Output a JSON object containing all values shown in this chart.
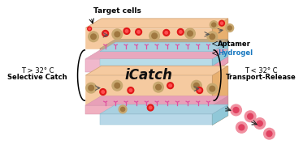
{
  "bg_color": "#ffffff",
  "icatch_text": "iCatch",
  "left_text_line1": "T > 32° C",
  "left_text_line2": "Selective Catch",
  "right_text_line1": "T < 32° C",
  "right_text_line2": "Transport-Release",
  "top_label_cells": "Target cells",
  "top_label_aptamer": "Aptamer",
  "top_label_hydrogel": "Hydrogel",
  "top_box": {
    "tan_color": "#f5caa0",
    "tan_dark": "#e8b070",
    "pink_color": "#f0b8cc",
    "pink_dark": "#e8a0b8",
    "blue_color": "#b8dce8",
    "aptamer_layer": "#c8a888"
  },
  "bottom_box": {
    "tan_color": "#f5caa0",
    "tan_dark": "#e8b070",
    "pink_color": "#f0b0c0",
    "pink_dark": "#e898b0",
    "blue_color": "#b8d8e8"
  },
  "cells": {
    "tan_outer": "#c8a870",
    "tan_inner": "#a07840",
    "red_outer": "#e01818",
    "red_inner": "#ff5050",
    "pink_outer": "#f090a0",
    "pink_inner": "#e04060"
  },
  "arrow_color": "#222222"
}
